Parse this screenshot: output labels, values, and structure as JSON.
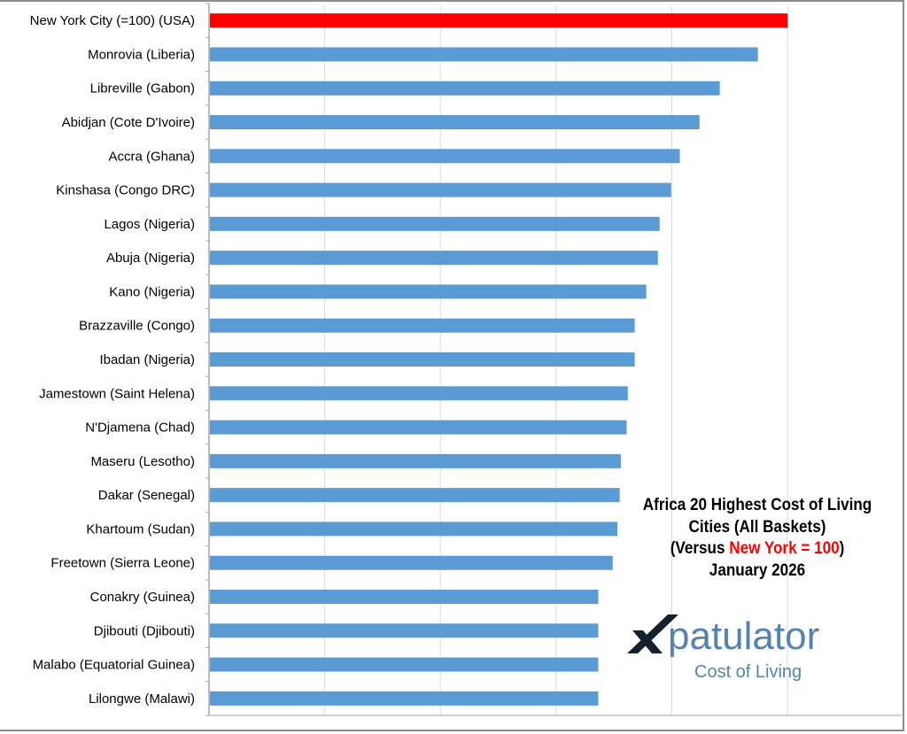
{
  "chart_data": {
    "type": "bar",
    "orientation": "horizontal",
    "title_lines": [
      "Africa 20 Highest Cost of Living",
      "Cities (All Baskets)"
    ],
    "title_versus_prefix": "(Versus ",
    "title_versus_highlight": "New York = 100",
    "title_versus_suffix": ")",
    "title_date": "January 2026",
    "categories": [
      "New York City (=100) (USA)",
      "Monrovia (Liberia)",
      "Libreville (Gabon)",
      "Abidjan (Cote D'Ivoire)",
      "Accra (Ghana)",
      "Kinshasa (Congo DRC)",
      "Lagos (Nigeria)",
      "Abuja (Nigeria)",
      "Kano (Nigeria)",
      "Brazzaville (Congo)",
      "Ibadan (Nigeria)",
      "Jamestown (Saint Helena)",
      "N'Djamena (Chad)",
      "Maseru (Lesotho)",
      "Dakar (Senegal)",
      "Khartoum (Sudan)",
      "Freetown (Sierra Leone)",
      "Conakry (Guinea)",
      "Djibouti (Djibouti)",
      "Malabo (Equatorial Guinea)",
      "Lilongwe (Malawi)"
    ],
    "values": [
      100,
      94.9,
      88.3,
      84.8,
      81.4,
      79.9,
      77.9,
      77.6,
      75.6,
      73.6,
      73.6,
      72.4,
      72.2,
      71.2,
      71.0,
      70.6,
      69.8,
      67.3,
      67.3,
      67.3,
      67.3
    ],
    "xlim": [
      0,
      100
    ],
    "grid_step": 20,
    "grid": true,
    "xlabel": "",
    "ylabel": "",
    "colors": {
      "highlight": "#ff0000",
      "bar": "#5b9bd5",
      "grid": "#d9d9d9"
    }
  },
  "logo": {
    "word": "patulator",
    "letter": "X",
    "subtitle": "Cost of Living"
  }
}
